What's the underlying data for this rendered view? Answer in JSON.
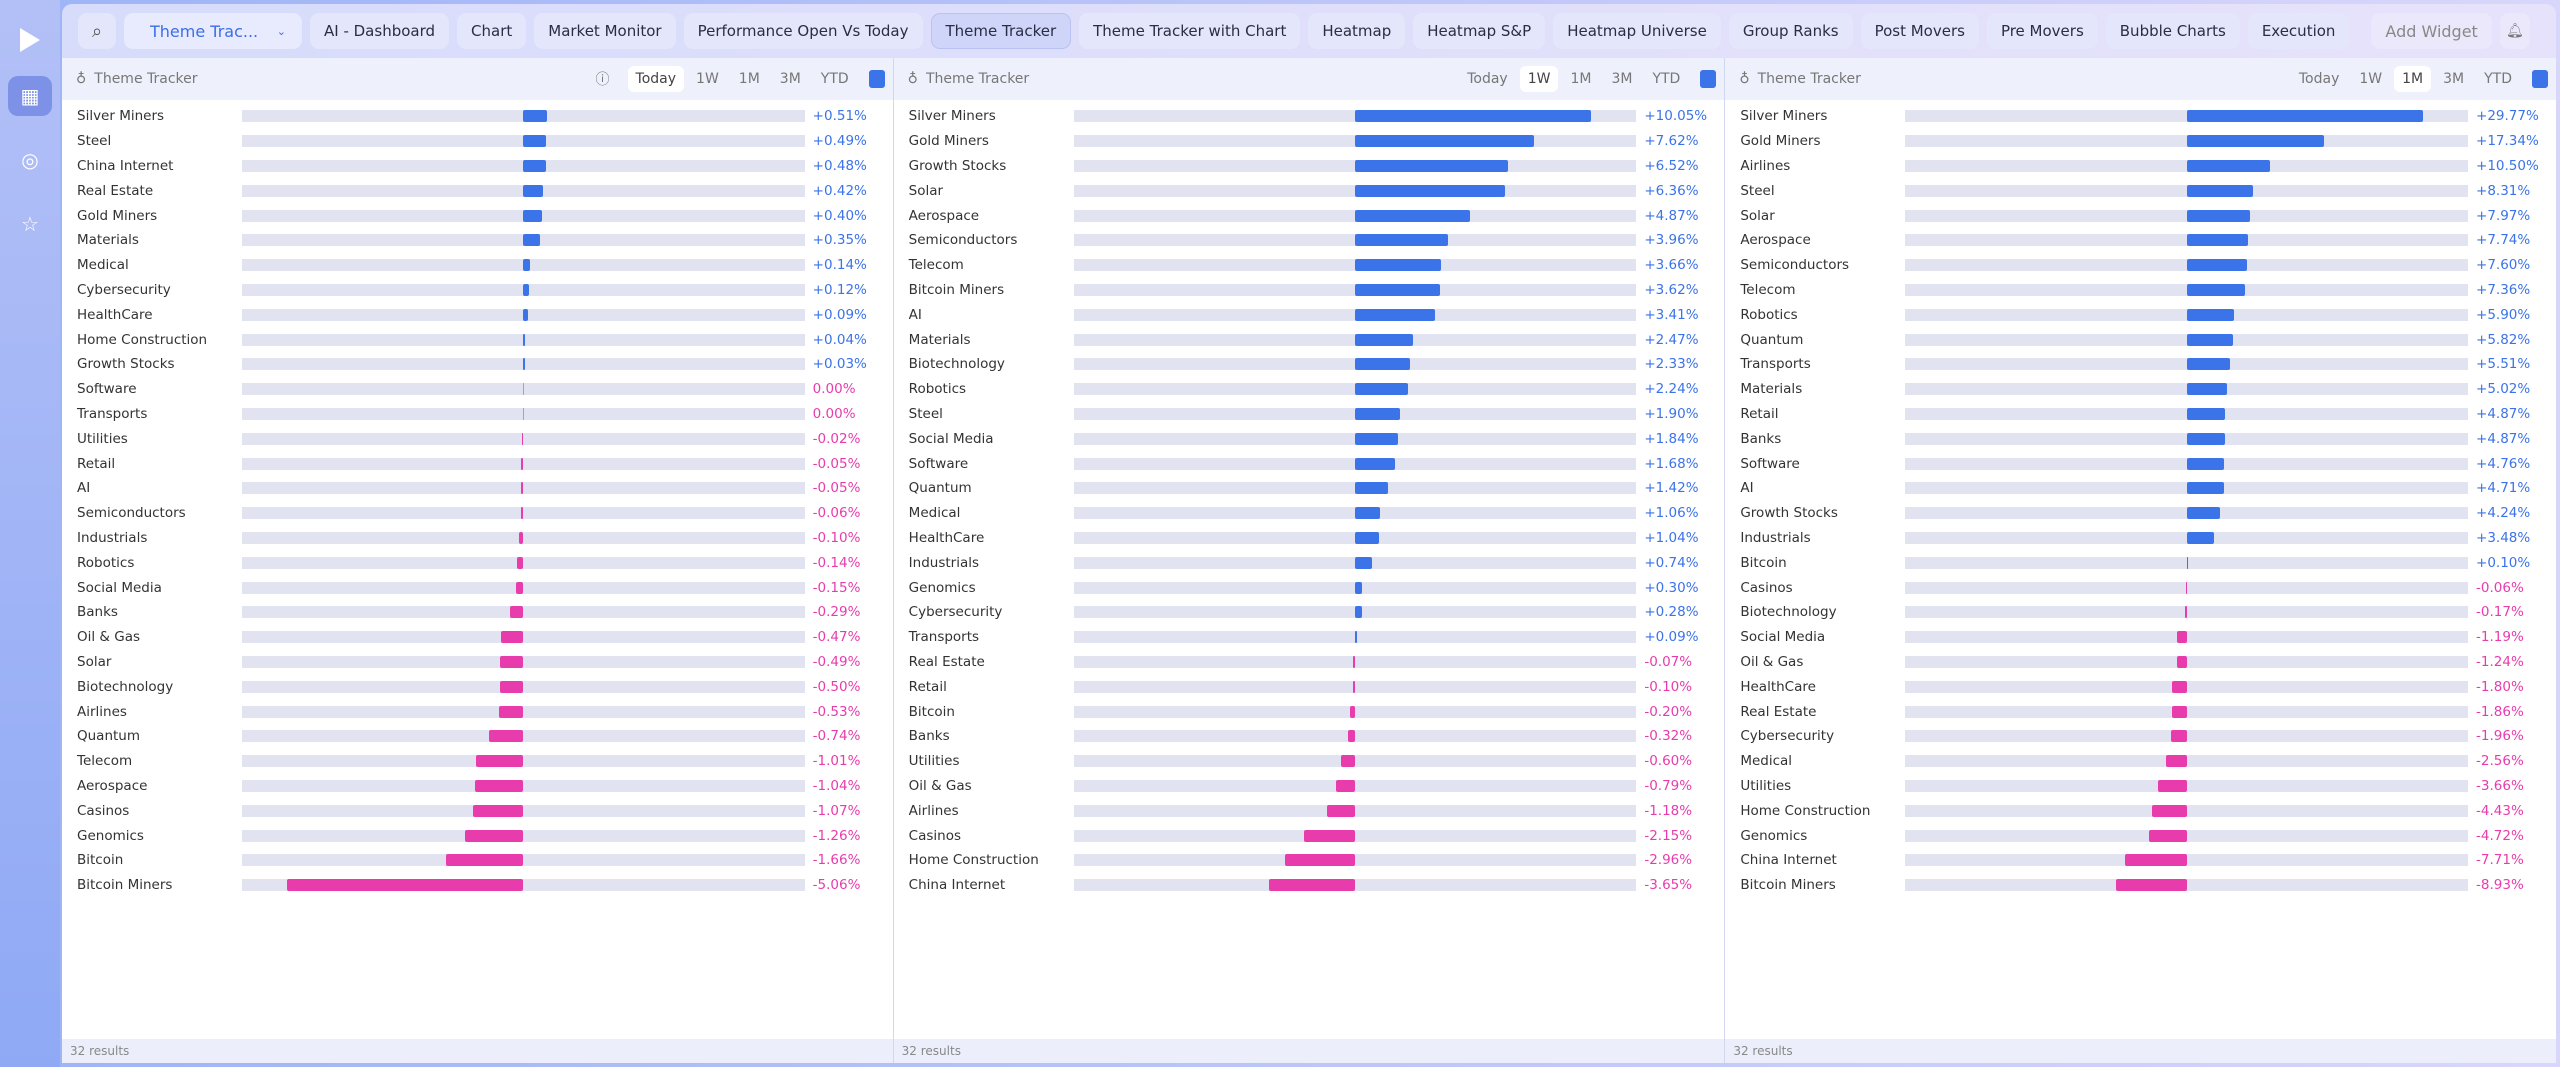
{
  "colors": {
    "positive": "#3b73e8",
    "negative": "#e83cad"
  },
  "toolbar": {
    "selected_layout": "Theme Trac...",
    "add_widget": "Add Widget",
    "tabs": [
      "AI - Dashboard",
      "Chart",
      "Market Monitor",
      "Performance Open Vs Today",
      "Theme Tracker",
      "Theme Tracker with Chart",
      "Heatmap",
      "Heatmap S&P",
      "Heatmap Universe",
      "Group Ranks",
      "Post Movers",
      "Pre Movers",
      "Bubble Charts",
      "Execution"
    ],
    "active_tab": 4
  },
  "periods": [
    "Today",
    "1W",
    "1M",
    "3M",
    "YTD"
  ],
  "panels": [
    {
      "title": "Theme Tracker",
      "period": "Today",
      "footer": "32 results",
      "items": [
        [
          "Silver Miners",
          0.51
        ],
        [
          "Steel",
          0.49
        ],
        [
          "China Internet",
          0.48
        ],
        [
          "Real Estate",
          0.42
        ],
        [
          "Gold Miners",
          0.4
        ],
        [
          "Materials",
          0.35
        ],
        [
          "Medical",
          0.14
        ],
        [
          "Cybersecurity",
          0.12
        ],
        [
          "HealthCare",
          0.09
        ],
        [
          "Home Construction",
          0.04
        ],
        [
          "Growth Stocks",
          0.03
        ],
        [
          "Software",
          0.0
        ],
        [
          "Transports",
          0.0
        ],
        [
          "Utilities",
          -0.02
        ],
        [
          "Retail",
          -0.05
        ],
        [
          "AI",
          -0.05
        ],
        [
          "Semiconductors",
          -0.06
        ],
        [
          "Industrials",
          -0.1
        ],
        [
          "Robotics",
          -0.14
        ],
        [
          "Social Media",
          -0.15
        ],
        [
          "Banks",
          -0.29
        ],
        [
          "Oil & Gas",
          -0.47
        ],
        [
          "Solar",
          -0.49
        ],
        [
          "Biotechnology",
          -0.5
        ],
        [
          "Airlines",
          -0.53
        ],
        [
          "Quantum",
          -0.74
        ],
        [
          "Telecom",
          -1.01
        ],
        [
          "Aerospace",
          -1.04
        ],
        [
          "Casinos",
          -1.07
        ],
        [
          "Genomics",
          -1.26
        ],
        [
          "Bitcoin",
          -1.66
        ],
        [
          "Bitcoin Miners",
          -5.06
        ]
      ]
    },
    {
      "title": "Theme Tracker",
      "period": "1W",
      "footer": "32 results",
      "items": [
        [
          "Silver Miners",
          10.05
        ],
        [
          "Gold Miners",
          7.62
        ],
        [
          "Growth Stocks",
          6.52
        ],
        [
          "Solar",
          6.36
        ],
        [
          "Aerospace",
          4.87
        ],
        [
          "Semiconductors",
          3.96
        ],
        [
          "Telecom",
          3.66
        ],
        [
          "Bitcoin Miners",
          3.62
        ],
        [
          "AI",
          3.41
        ],
        [
          "Materials",
          2.47
        ],
        [
          "Biotechnology",
          2.33
        ],
        [
          "Robotics",
          2.24
        ],
        [
          "Steel",
          1.9
        ],
        [
          "Social Media",
          1.84
        ],
        [
          "Software",
          1.68
        ],
        [
          "Quantum",
          1.42
        ],
        [
          "Medical",
          1.06
        ],
        [
          "HealthCare",
          1.04
        ],
        [
          "Industrials",
          0.74
        ],
        [
          "Genomics",
          0.3
        ],
        [
          "Cybersecurity",
          0.28
        ],
        [
          "Transports",
          0.09
        ],
        [
          "Real Estate",
          -0.07
        ],
        [
          "Retail",
          -0.1
        ],
        [
          "Bitcoin",
          -0.2
        ],
        [
          "Banks",
          -0.32
        ],
        [
          "Utilities",
          -0.6
        ],
        [
          "Oil & Gas",
          -0.79
        ],
        [
          "Airlines",
          -1.18
        ],
        [
          "Casinos",
          -2.15
        ],
        [
          "Home Construction",
          -2.96
        ],
        [
          "China Internet",
          -3.65
        ]
      ]
    },
    {
      "title": "Theme Tracker",
      "period": "1M",
      "footer": "32 results",
      "items": [
        [
          "Silver Miners",
          29.77
        ],
        [
          "Gold Miners",
          17.34
        ],
        [
          "Airlines",
          10.5
        ],
        [
          "Steel",
          8.31
        ],
        [
          "Solar",
          7.97
        ],
        [
          "Aerospace",
          7.74
        ],
        [
          "Semiconductors",
          7.6
        ],
        [
          "Telecom",
          7.36
        ],
        [
          "Robotics",
          5.9
        ],
        [
          "Quantum",
          5.82
        ],
        [
          "Transports",
          5.51
        ],
        [
          "Materials",
          5.02
        ],
        [
          "Retail",
          4.87
        ],
        [
          "Banks",
          4.87
        ],
        [
          "Software",
          4.76
        ],
        [
          "AI",
          4.71
        ],
        [
          "Growth Stocks",
          4.24
        ],
        [
          "Industrials",
          3.48
        ],
        [
          "Bitcoin",
          0.1
        ],
        [
          "Casinos",
          -0.06
        ],
        [
          "Biotechnology",
          -0.17
        ],
        [
          "Social Media",
          -1.19
        ],
        [
          "Oil & Gas",
          -1.24
        ],
        [
          "HealthCare",
          -1.8
        ],
        [
          "Real Estate",
          -1.86
        ],
        [
          "Cybersecurity",
          -1.96
        ],
        [
          "Medical",
          -2.56
        ],
        [
          "Utilities",
          -3.66
        ],
        [
          "Home Construction",
          -4.43
        ],
        [
          "Genomics",
          -4.72
        ],
        [
          "China Internet",
          -7.71
        ],
        [
          "Bitcoin Miners",
          -8.93
        ]
      ]
    }
  ]
}
